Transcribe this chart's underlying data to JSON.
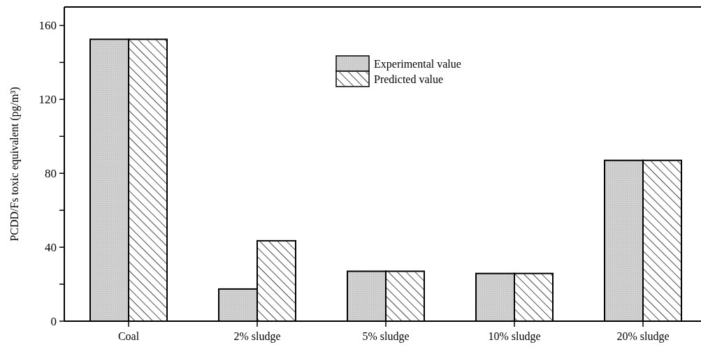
{
  "chart_data": {
    "type": "bar",
    "ylabel": "PCDD/Fs toxic equivalent (pg/m³)",
    "categories": [
      "Coal",
      "2% sludge",
      "5% sludge",
      "10% sludge",
      "20% sludge"
    ],
    "series": [
      {
        "name": "Experimental value",
        "color": "#d0d0d0",
        "values": [
          152.5,
          17.4,
          27,
          25.8,
          87
        ]
      },
      {
        "name": "Predicted value",
        "color": "#ffffff",
        "values": [
          152.5,
          43.5,
          27,
          25.8,
          87
        ]
      }
    ],
    "ylim": [
      0,
      170
    ],
    "yticks": [
      0,
      {
        "value": 20,
        "label": null
      },
      40,
      {
        "value": 60,
        "label": null
      },
      80,
      {
        "value": 100,
        "label": null
      },
      120,
      {
        "value": 140,
        "label": null
      },
      160
    ],
    "grid": false,
    "legend": "top"
  }
}
